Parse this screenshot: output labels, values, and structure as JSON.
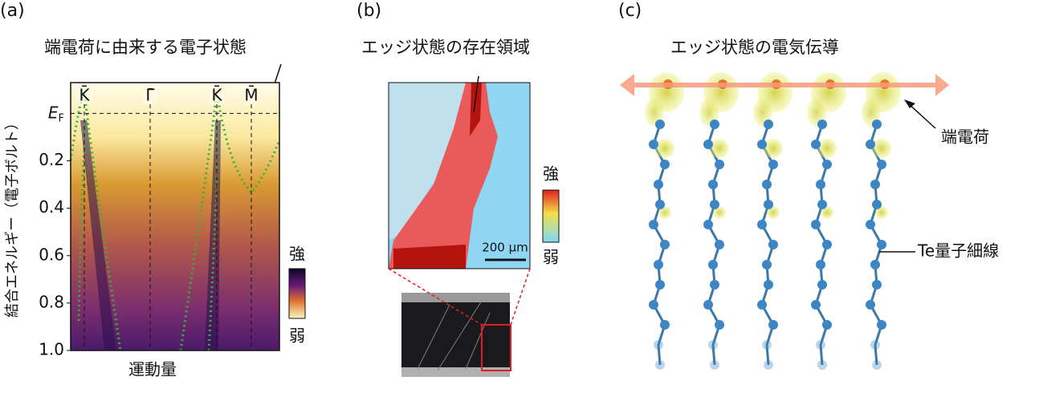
{
  "panel_a": {
    "tag": "(a)",
    "annotation": "端電荷に由来する電子状態",
    "y_label": "結合エネルギー（電子ボルト）",
    "x_label": "運動量",
    "k_points": [
      "K̄",
      "Γ̄",
      "K̄",
      "M̄"
    ],
    "fermi_level": {
      "value": 0,
      "label": "E",
      "subscript": "F"
    },
    "ylim": [
      -0.13,
      1.0
    ],
    "yticks": [
      0.2,
      0.4,
      0.6,
      0.8,
      {
        "value": 1,
        "label": "1.0"
      }
    ],
    "colorbar": {
      "high": "強",
      "low": "弱"
    }
  },
  "panel_b": {
    "tag": "(b)",
    "title": "エッジ状態の存在領域",
    "scale_bar": "200 μm",
    "colorbar": {
      "high": "強",
      "low": "弱"
    }
  },
  "panel_c": {
    "tag": "(c)",
    "title": "エッジ状態の電気伝導",
    "label_charge": "端電荷",
    "label_wire": "Te量子細線"
  }
}
